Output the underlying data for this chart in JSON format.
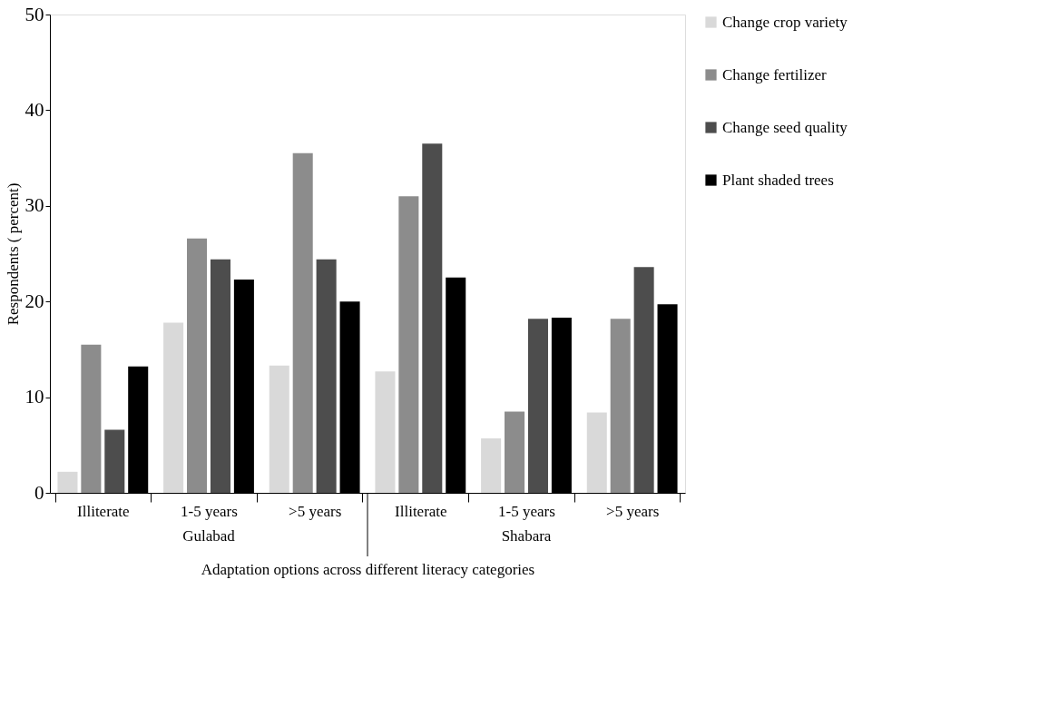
{
  "chart_data": {
    "type": "bar",
    "xlabel": "Adaptation options across different literacy categories",
    "ylabel": "Respondents ( percent)",
    "categories": [
      "Illiterate",
      "1-5 years",
      ">5 years",
      "Illiterate",
      "1-5 years",
      ">5 years"
    ],
    "series": [
      {
        "name": "Change crop variety",
        "color": "#d9d9d9",
        "values": [
          2.2,
          17.8,
          13.3,
          12.7,
          5.7,
          8.4
        ]
      },
      {
        "name": "Change fertilizer",
        "color": "#8c8c8c",
        "values": [
          15.5,
          26.6,
          35.5,
          31.0,
          8.5,
          18.2
        ]
      },
      {
        "name": "Change seed quality",
        "color": "#4d4d4d",
        "values": [
          6.6,
          24.4,
          24.4,
          36.5,
          18.2,
          23.6
        ]
      },
      {
        "name": "Plant shaded trees",
        "color": "#000000",
        "values": [
          13.2,
          22.3,
          20.0,
          22.5,
          18.3,
          19.7
        ]
      }
    ],
    "annotations": [
      "Gulabad",
      "Shabara"
    ],
    "ylim": [
      0,
      50
    ],
    "yticks": [
      0,
      10,
      20,
      30,
      40,
      50
    ],
    "grid": false,
    "legend": "right"
  }
}
